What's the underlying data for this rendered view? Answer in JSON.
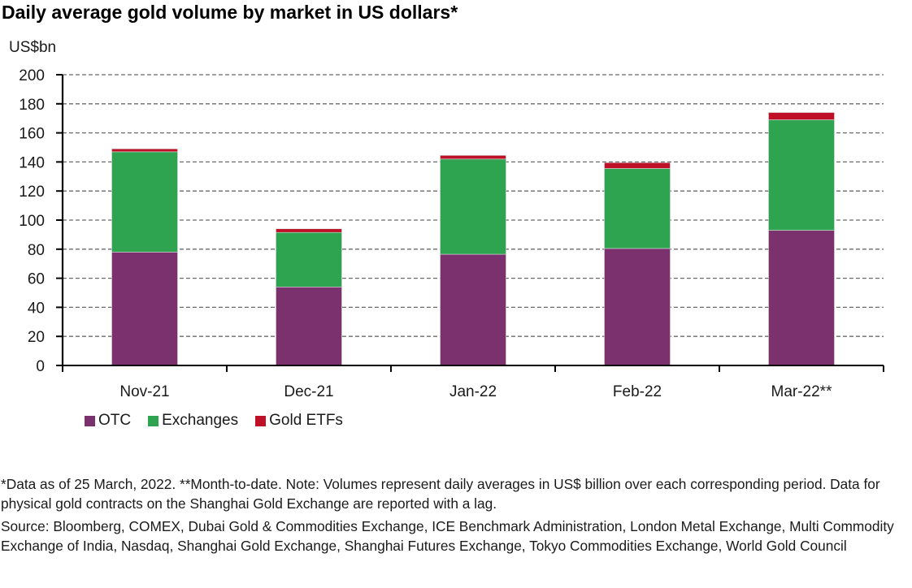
{
  "chart_data": {
    "type": "bar",
    "stacked": true,
    "title": "Daily average gold volume by market in US dollars*",
    "xlabel": "",
    "ylabel": "US$bn",
    "ylim": [
      0,
      200
    ],
    "yticks": [
      0,
      20,
      40,
      60,
      80,
      100,
      120,
      140,
      160,
      180,
      200
    ],
    "grid": true,
    "legend_position": "bottom-left",
    "categories": [
      "Nov-21",
      "Dec-21",
      "Jan-22",
      "Feb-22",
      "Mar-22**"
    ],
    "series": [
      {
        "name": "OTC",
        "color": "#7b316e",
        "values": [
          78,
          54,
          76.5,
          80.5,
          93
        ]
      },
      {
        "name": "Exchanges",
        "color": "#2ea350",
        "values": [
          69,
          37.5,
          65.5,
          55,
          76
        ]
      },
      {
        "name": "Gold ETFs",
        "color": "#be1128",
        "values": [
          2,
          2.5,
          2.5,
          4,
          5
        ]
      }
    ]
  },
  "notes": {
    "footnote": "*Data as of 25 March, 2022. **Month-to-date. Note: Volumes represent daily averages in US$ billion over each corresponding period. Data for physical gold contracts on the Shanghai Gold Exchange are reported with a lag.",
    "source": "Source: Bloomberg, COMEX, Dubai Gold & Commodities Exchange, ICE Benchmark Administration, London Metal Exchange, Multi Commodity Exchange of India, Nasdaq, Shanghai Gold Exchange, Shanghai Futures Exchange, Tokyo Commodities Exchange, World Gold Council"
  }
}
